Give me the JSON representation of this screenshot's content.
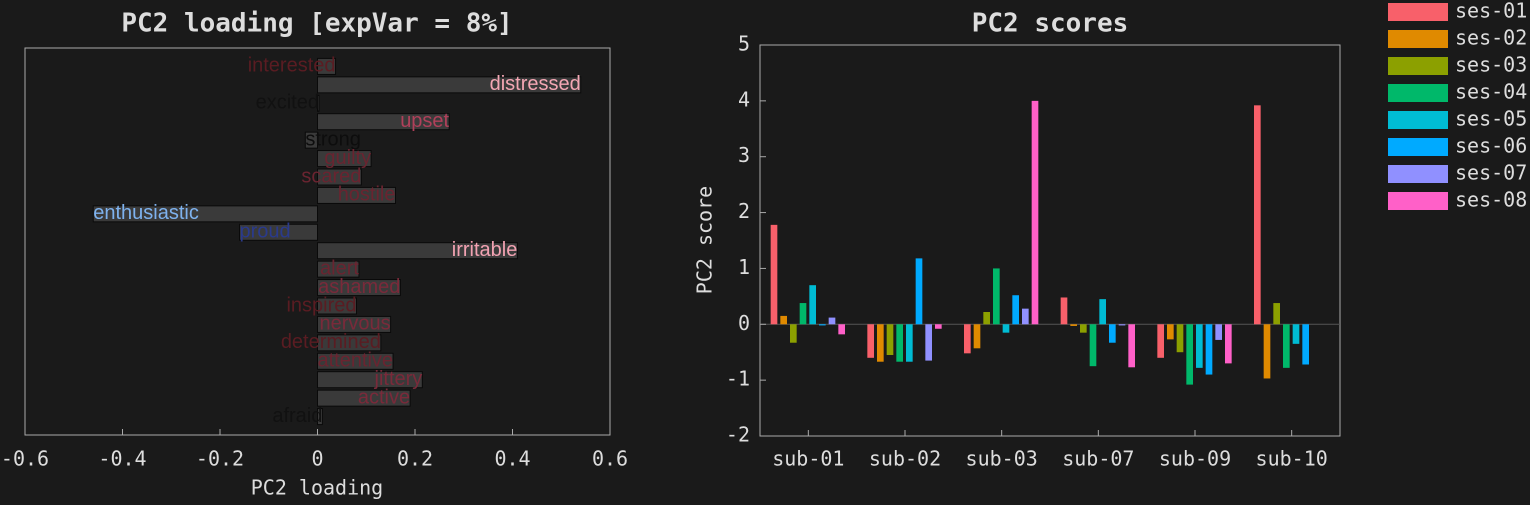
{
  "chart_data": [
    {
      "type": "barh",
      "title": "PC2 loading [expVar = 8%]",
      "xlabel": "PC2 loading",
      "categories": [
        "interested",
        "distressed",
        "excited",
        "upset",
        "strong",
        "guilty",
        "scared",
        "hostile",
        "enthusiastic",
        "proud",
        "irritable",
        "alert",
        "ashamed",
        "inspired",
        "nervous",
        "determined",
        "attentive",
        "jittery",
        "active",
        "afraid"
      ],
      "values": [
        0.037,
        0.54,
        0.003,
        0.27,
        -0.025,
        0.11,
        0.09,
        0.16,
        -0.46,
        -0.16,
        0.41,
        0.085,
        0.17,
        0.08,
        0.15,
        0.13,
        0.155,
        0.215,
        0.19,
        0.01
      ],
      "label_colors": [
        "#5a1c22",
        "#f4a7b4",
        "#111111",
        "#b0405a",
        "#0d0d0d",
        "#6a2430",
        "#6a2430",
        "#6a2430",
        "#7eb2ee",
        "#2a3a8c",
        "#f2a2b2",
        "#6a2430",
        "#7a2a3a",
        "#5a1c22",
        "#7a2a3a",
        "#5a1c22",
        "#6a2430",
        "#7a2a3a",
        "#7a2a3a",
        "#111111"
      ],
      "color": "#3a3a3a",
      "xlim": [
        -0.6,
        0.6
      ],
      "xticks": [
        -0.6,
        -0.4,
        -0.2,
        0,
        0.2,
        0.4,
        0.6
      ]
    },
    {
      "type": "bar",
      "title": "PC2 scores",
      "ylabel": "PC2 score",
      "categories": [
        "sub-01",
        "sub-02",
        "sub-03",
        "sub-07",
        "sub-09",
        "sub-10"
      ],
      "series": [
        {
          "name": "ses-01",
          "color": "#f8606a",
          "values": [
            1.78,
            -0.6,
            -0.52,
            0.48,
            -0.6,
            3.92
          ]
        },
        {
          "name": "ses-02",
          "color": "#e08a00",
          "values": [
            0.15,
            -0.67,
            -0.43,
            -0.03,
            -0.27,
            -0.97
          ]
        },
        {
          "name": "ses-03",
          "color": "#8ca000",
          "values": [
            -0.33,
            -0.55,
            0.22,
            -0.15,
            -0.5,
            0.38
          ]
        },
        {
          "name": "ses-04",
          "color": "#00b86a",
          "values": [
            0.38,
            -0.67,
            1.0,
            -0.75,
            -1.08,
            -0.78
          ]
        },
        {
          "name": "ses-05",
          "color": "#00bcd4",
          "values": [
            0.7,
            -0.67,
            -0.15,
            0.45,
            -0.78,
            -0.35
          ]
        },
        {
          "name": "ses-06",
          "color": "#00aaff",
          "values": [
            -0.02,
            1.18,
            0.52,
            -0.33,
            -0.9,
            -0.72
          ]
        },
        {
          "name": "ses-07",
          "color": "#9090ff",
          "values": [
            0.12,
            -0.65,
            0.28,
            -0.02,
            -0.28,
            null
          ]
        },
        {
          "name": "ses-08",
          "color": "#ff60c8",
          "values": [
            -0.18,
            -0.08,
            4.0,
            -0.77,
            -0.7,
            null
          ]
        }
      ],
      "ylim": [
        -2,
        5
      ],
      "yticks": [
        -2,
        -1,
        0,
        1,
        2,
        3,
        4,
        5
      ],
      "legend": "outside-right"
    }
  ]
}
